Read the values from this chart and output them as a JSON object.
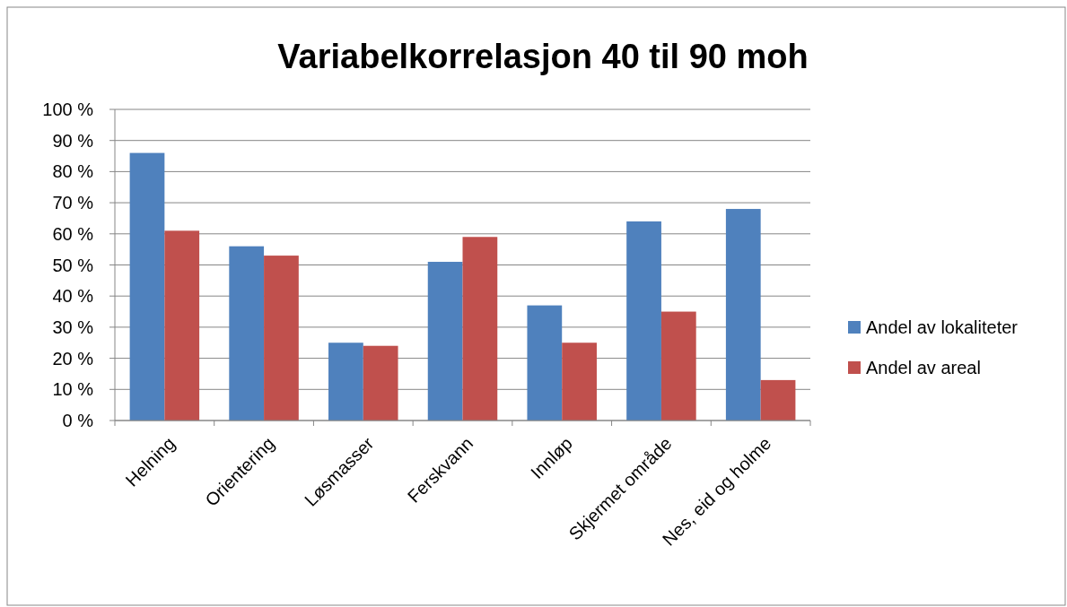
{
  "chart_data": {
    "type": "bar",
    "title": "Variabelkorrelasjon 40 til 90 moh",
    "categories": [
      "Helning",
      "Orientering",
      "Løsmasser",
      "Ferskvann",
      "Innløp",
      "Skjermet område",
      "Nes, eid og holme"
    ],
    "series": [
      {
        "name": "Andel av lokaliteter",
        "color": "#4f81bd",
        "values": [
          86,
          56,
          25,
          51,
          37,
          64,
          68
        ]
      },
      {
        "name": "Andel av areal",
        "color": "#c0504d",
        "values": [
          61,
          53,
          24,
          59,
          25,
          35,
          13
        ]
      }
    ],
    "ylim": [
      0,
      100
    ],
    "yticks": [
      {
        "value": 0,
        "label": "0 %"
      },
      {
        "value": 10,
        "label": "10 %"
      },
      {
        "value": 20,
        "label": "20 %"
      },
      {
        "value": 30,
        "label": "30 %"
      },
      {
        "value": 40,
        "label": "40 %"
      },
      {
        "value": 50,
        "label": "50 %"
      },
      {
        "value": 60,
        "label": "60 %"
      },
      {
        "value": 70,
        "label": "70 %"
      },
      {
        "value": 80,
        "label": "80 %"
      },
      {
        "value": 90,
        "label": "90 %"
      },
      {
        "value": 100,
        "label": "100 %"
      }
    ],
    "grid": "y",
    "legend": "right"
  }
}
